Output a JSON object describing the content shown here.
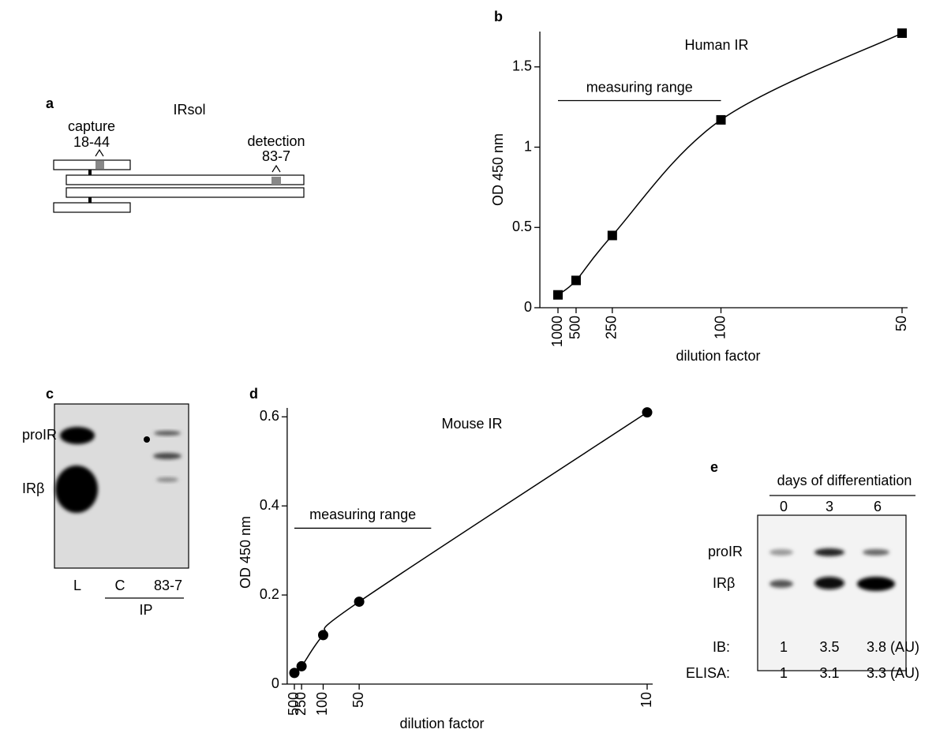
{
  "chart_data": [
    {
      "type": "line",
      "panel": "b",
      "title": "Human IR",
      "x_label": "dilution factor",
      "y_label": "OD 450 nm",
      "xscale": "reciprocal",
      "x": [
        1000,
        500,
        250,
        100,
        50
      ],
      "series": [
        {
          "color": "#000000",
          "marker": "square",
          "values": [
            0.08,
            0.17,
            0.45,
            1.17,
            1.71
          ]
        }
      ],
      "xlim": [
        1000,
        50
      ],
      "xticks": [
        1000,
        500,
        250,
        100,
        50
      ],
      "ylim": [
        0,
        1.72
      ],
      "yticks": [
        0,
        0.5,
        1,
        1.5
      ],
      "measuring_range": {
        "label": "measuring range",
        "from": 1000,
        "to": 100,
        "value": 1.29
      }
    },
    {
      "type": "line",
      "panel": "d",
      "title": "Mouse IR",
      "x_label": "dilution factor",
      "y_label": "OD 450 nm",
      "xscale": "reciprocal",
      "x": [
        500,
        250,
        100,
        50,
        10
      ],
      "series": [
        {
          "color": "#000000",
          "marker": "circle",
          "values": [
            0.025,
            0.04,
            0.11,
            0.185,
            0.61
          ]
        }
      ],
      "xlim": [
        500,
        10
      ],
      "xticks": [
        500,
        250,
        100,
        50,
        10
      ],
      "ylim": [
        0,
        0.62
      ],
      "yticks": [
        0,
        0.2,
        0.4,
        0.6
      ],
      "measuring_range": {
        "label": "measuring range",
        "from": 500,
        "to": 25,
        "value": 0.35
      }
    }
  ],
  "panels": {
    "a": {
      "letter": "a",
      "title": "IRsol",
      "capture": {
        "label": "capture",
        "antibody": "18-44"
      },
      "detection": {
        "label": "detection",
        "antibody": "83-7"
      }
    },
    "c": {
      "letter": "c",
      "bands": [
        "proIR",
        "IRβ"
      ],
      "lanes": [
        "L",
        "C",
        "83-7"
      ],
      "group": "IP"
    },
    "e": {
      "letter": "e",
      "header": "days of differentiation",
      "lanes": [
        "0",
        "3",
        "6"
      ],
      "bands": [
        "proIR",
        "IRβ"
      ],
      "rows": [
        [
          "IB:",
          "1",
          "3.5",
          "3.8 (AU)"
        ],
        [
          "ELISA:",
          "1",
          "3.1",
          "3.3 (AU)"
        ]
      ]
    }
  }
}
